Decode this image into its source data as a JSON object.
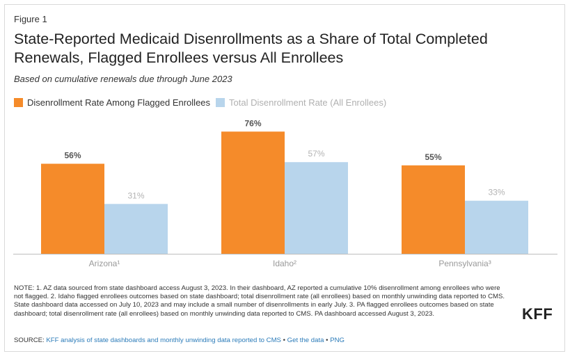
{
  "figure_label": "Figure 1",
  "title": "State-Reported Medicaid Disenrollments as a Share of Total Completed Renewals, Flagged Enrollees versus All Enrollees",
  "subtitle": "Based on cumulative renewals due through June 2023",
  "colors": {
    "flagged": "#f58b2a",
    "total": "#b8d5ec",
    "axis": "#bdbdbd",
    "link": "#2b7bb9"
  },
  "chart_data": {
    "type": "bar",
    "categories": [
      "Arizona¹",
      "Idaho²",
      "Pennsylvania³"
    ],
    "series": [
      {
        "name": "Disenrollment Rate Among Flagged Enrollees",
        "values": [
          56,
          76,
          55
        ],
        "labels": [
          "56%",
          "76%",
          "55%"
        ]
      },
      {
        "name": "Total Disenrollment Rate (All Enrollees)",
        "values": [
          31,
          57,
          33
        ],
        "labels": [
          "31%",
          "57%",
          "33%"
        ]
      }
    ],
    "ylim": [
      0,
      80
    ],
    "grid": false,
    "legend_position": "top-left"
  },
  "notes": "NOTE: 1. AZ data sourced from state dashboard access August 3, 2023. In their dashboard, AZ reported a cumulative 10% disenrollment among enrollees who were not flagged. 2. Idaho flagged enrollees outcomes based on state dashboard; total disenrollment rate (all enrollees) based on monthly unwinding data reported to CMS. State dashboard data accessed on July 10, 2023 and may include a small number of disenrollments in early July. 3. PA flagged enrollees outcomes based on state dashboard; total disenrollment rate (all enrollees) based on monthly unwinding data reported to CMS. PA dashboard accessed August 3, 2023.",
  "source": {
    "prefix": "SOURCE: ",
    "link_text": "KFF analysis of state dashboards and monthly unwinding data reported to CMS",
    "sep1": " • ",
    "get_data": "Get the data",
    "sep2": " • ",
    "png": "PNG"
  },
  "logo": "KFF"
}
